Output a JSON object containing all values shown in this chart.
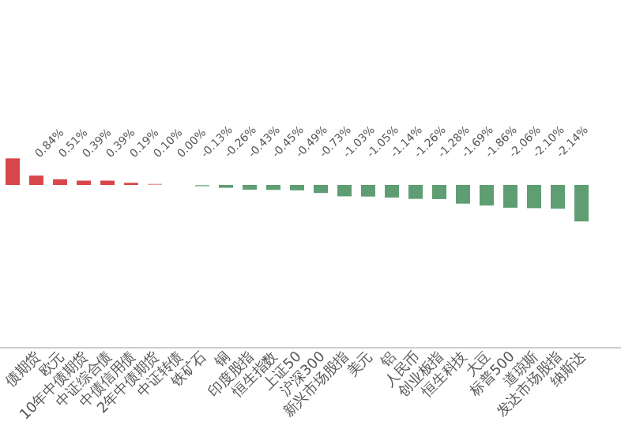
{
  "chart_data": {
    "type": "bar",
    "categories": [
      null,
      "债期货",
      "欧元",
      "10年中债期货",
      "中证综合债",
      "中债信用债",
      "2年中债期货",
      "中证转债",
      "铁矿石",
      "铜",
      "印度股指",
      "恒生指数",
      "上证50",
      "沪深300",
      "新兴市场股指",
      "美元",
      "铝",
      "人民币",
      "创业板指",
      "恒生科技",
      "大豆",
      "标普500",
      "道琼斯",
      "发达市场股指",
      "纳斯达"
    ],
    "values": [
      2.4,
      0.84,
      0.51,
      0.39,
      0.39,
      0.19,
      0.1,
      0.0,
      -0.13,
      -0.26,
      -0.43,
      -0.45,
      -0.49,
      -0.73,
      -1.03,
      -1.05,
      -1.14,
      -1.26,
      -1.28,
      -1.69,
      -1.86,
      -2.06,
      -2.1,
      -2.14,
      -3.3
    ],
    "value_labels": [
      null,
      "0.84%",
      "0.51%",
      "0.39%",
      "0.39%",
      "0.19%",
      "0.10%",
      "0.00%",
      "-0.13%",
      "-0.26%",
      "-0.43%",
      "-0.45%",
      "-0.49%",
      "-0.73%",
      "-1.03%",
      "-1.05%",
      "-1.14%",
      "-1.26%",
      "-1.28%",
      "-1.69%",
      "-1.86%",
      "-2.06%",
      "-2.10%",
      "-2.14%",
      null
    ],
    "colors": [
      "#d9464b",
      "#d9464b",
      "#d9464b",
      "#d9464b",
      "#d9464b",
      "#d9464b",
      "#e8a0a2",
      "#e8a0a2",
      "#8fbf9c",
      "#5f9e72",
      "#5f9e72",
      "#5f9e72",
      "#5f9e72",
      "#5f9e72",
      "#5f9e72",
      "#5f9e72",
      "#5f9e72",
      "#5f9e72",
      "#5f9e72",
      "#5f9e72",
      "#5f9e72",
      "#5f9e72",
      "#5f9e72",
      "#5f9e72",
      "#5f9e72"
    ]
  }
}
